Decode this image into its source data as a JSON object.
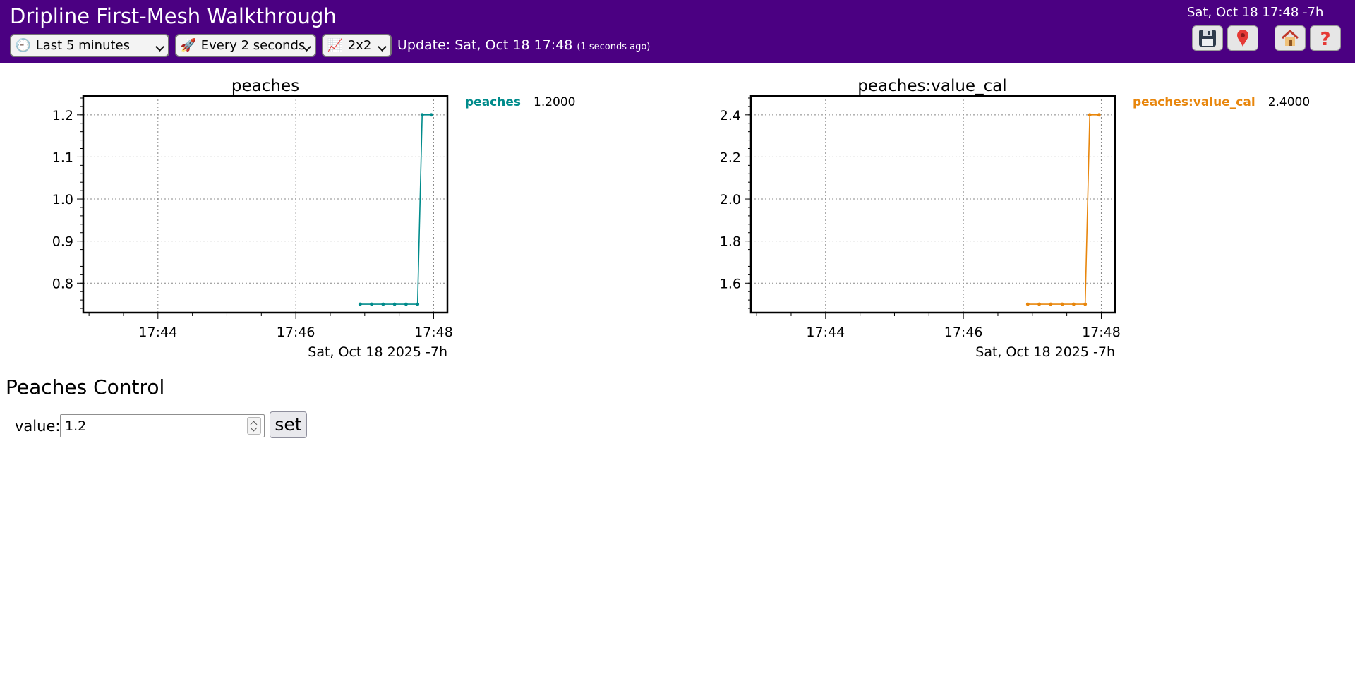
{
  "app": {
    "title": "Dripline First-Mesh Walkthrough",
    "clock": "Sat, Oct 18 17:48 -7h",
    "header_color": "#4b0082"
  },
  "controls": {
    "range": {
      "icon": "clock-icon",
      "label": "Last 5 minutes"
    },
    "refresh": {
      "icon": "rocket-icon",
      "label": "Every 2 seconds"
    },
    "layout": {
      "icon": "chart-icon",
      "label": "2x2"
    },
    "update_text": "Update: Sat, Oct 18 17:48",
    "update_ago": "(1 seconds ago)"
  },
  "toolbar": {
    "buttons": [
      {
        "name": "save-button",
        "icon": "floppy-disk-icon"
      },
      {
        "name": "pin-button",
        "icon": "pin-icon"
      },
      {
        "name": "home-button",
        "icon": "home-icon"
      },
      {
        "name": "help-button",
        "icon": "question-mark-icon"
      }
    ]
  },
  "charts": [
    {
      "title": "peaches",
      "legend_name": "peaches",
      "legend_value": "1.2000"
    },
    {
      "title": "peaches:value_cal",
      "legend_name": "peaches:value_cal",
      "legend_value": "2.4000"
    }
  ],
  "chart_data": [
    {
      "type": "line",
      "title": "peaches",
      "xlabel": "Sat, Oct 18 2025 -7h",
      "x_ticks": [
        "17:44",
        "17:46",
        "17:48"
      ],
      "y_ticks": [
        "0.8",
        "0.9",
        "1.0",
        "1.1",
        "1.2"
      ],
      "xlim": [
        "17:42:55",
        "17:48:12"
      ],
      "ylim": [
        0.73,
        1.245
      ],
      "grid": true,
      "legend_position": "right",
      "color": "#008b8b",
      "series": [
        {
          "name": "peaches",
          "x": [
            "17:46:56",
            "17:47:06",
            "17:47:16",
            "17:47:26",
            "17:47:36",
            "17:47:46",
            "17:47:50",
            "17:47:58"
          ],
          "values": [
            0.75,
            0.75,
            0.75,
            0.75,
            0.75,
            0.75,
            1.2,
            1.2
          ]
        }
      ]
    },
    {
      "type": "line",
      "title": "peaches:value_cal",
      "xlabel": "Sat, Oct 18 2025 -7h",
      "x_ticks": [
        "17:44",
        "17:46",
        "17:48"
      ],
      "y_ticks": [
        "1.6",
        "1.8",
        "2.0",
        "2.2",
        "2.4"
      ],
      "xlim": [
        "17:42:55",
        "17:48:12"
      ],
      "ylim": [
        1.46,
        2.49
      ],
      "grid": true,
      "legend_position": "right",
      "color": "#e8860c",
      "series": [
        {
          "name": "peaches:value_cal",
          "x": [
            "17:46:56",
            "17:47:06",
            "17:47:16",
            "17:47:26",
            "17:47:36",
            "17:47:46",
            "17:47:50",
            "17:47:58"
          ],
          "values": [
            1.5,
            1.5,
            1.5,
            1.5,
            1.5,
            1.5,
            2.4,
            2.4
          ]
        }
      ]
    }
  ],
  "control_panel": {
    "title": "Peaches Control",
    "value_label": "value:",
    "value": "1.2",
    "set_label": "set"
  }
}
